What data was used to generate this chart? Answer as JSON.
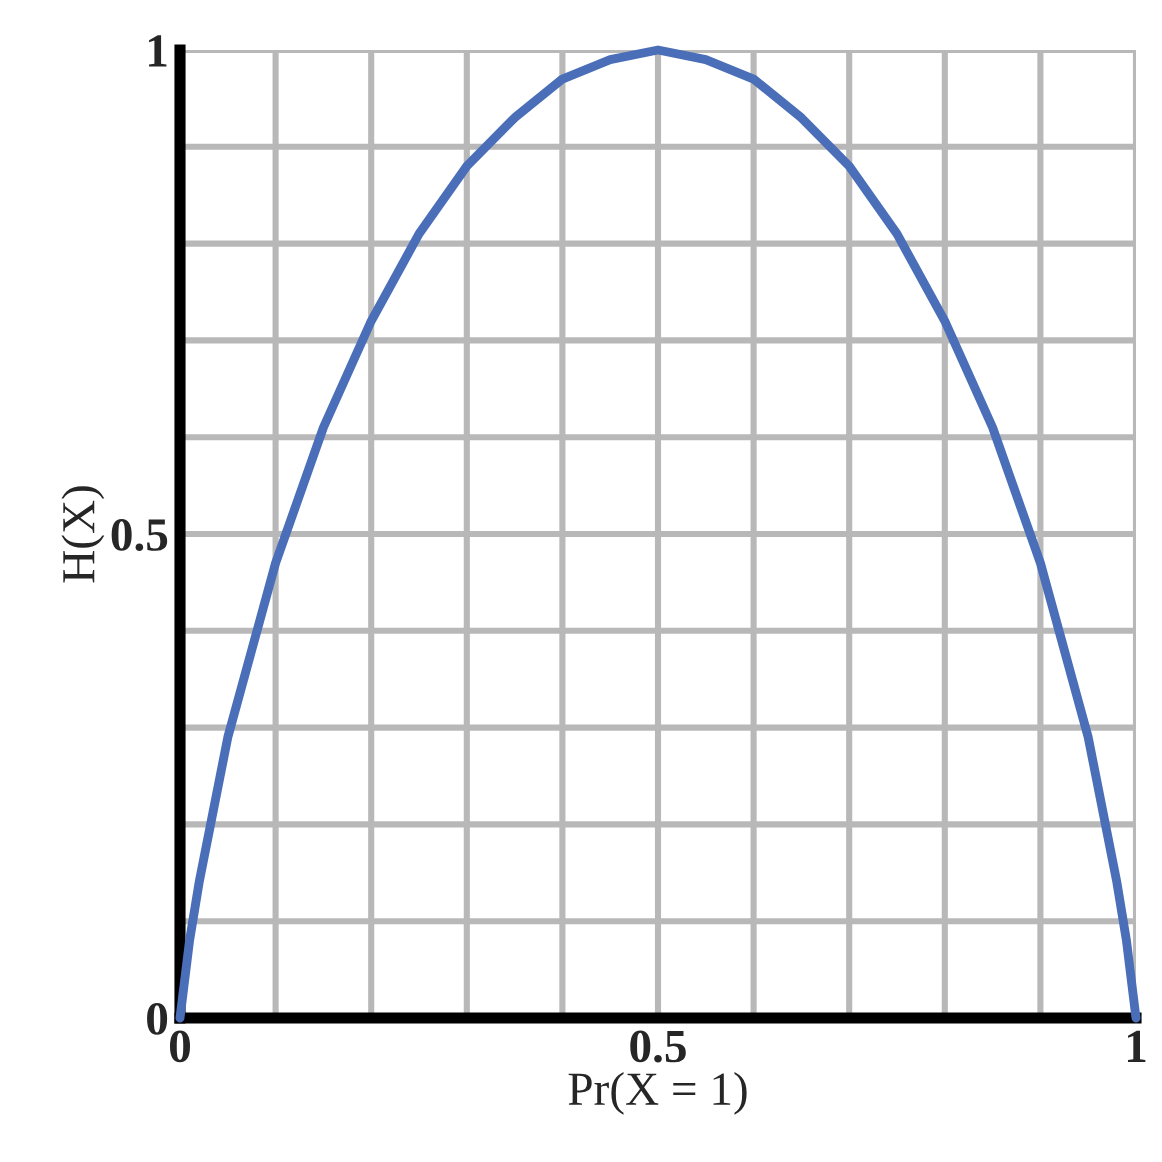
{
  "chart_data": {
    "type": "line",
    "xlabel": "Pr(X = 1)",
    "ylabel": "H(X)",
    "x": [
      0,
      0.01,
      0.02,
      0.05,
      0.1,
      0.15,
      0.2,
      0.25,
      0.3,
      0.35,
      0.4,
      0.45,
      0.5,
      0.55,
      0.6,
      0.65,
      0.7,
      0.75,
      0.8,
      0.85,
      0.9,
      0.95,
      0.98,
      0.99,
      1
    ],
    "series": [
      {
        "color": "#4a6fb8",
        "values": [
          0,
          0.08,
          0.14,
          0.29,
          0.47,
          0.61,
          0.72,
          0.81,
          0.88,
          0.93,
          0.97,
          0.99,
          1,
          0.99,
          0.97,
          0.93,
          0.88,
          0.81,
          0.72,
          0.61,
          0.47,
          0.29,
          0.14,
          0.08,
          0
        ]
      }
    ],
    "xlim": [
      0,
      1
    ],
    "ylim": [
      0,
      1
    ],
    "xticks": [
      0,
      {
        "value": 0.1,
        "label": null
      },
      {
        "value": 0.2,
        "label": null
      },
      {
        "value": 0.3,
        "label": null
      },
      {
        "value": 0.4,
        "label": null
      },
      0.5,
      {
        "value": 0.6,
        "label": null
      },
      {
        "value": 0.7,
        "label": null
      },
      {
        "value": 0.8,
        "label": null
      },
      {
        "value": 0.9,
        "label": null
      },
      1
    ],
    "yticks": [
      0,
      {
        "value": 0.1,
        "label": null
      },
      {
        "value": 0.2,
        "label": null
      },
      {
        "value": 0.3,
        "label": null
      },
      {
        "value": 0.4,
        "label": null
      },
      0.5,
      {
        "value": 0.6,
        "label": null
      },
      {
        "value": 0.7,
        "label": null
      },
      {
        "value": 0.8,
        "label": null
      },
      {
        "value": 0.9,
        "label": null
      },
      1
    ],
    "grid": true,
    "legend": false,
    "marker": "none",
    "line_style": "solid"
  }
}
